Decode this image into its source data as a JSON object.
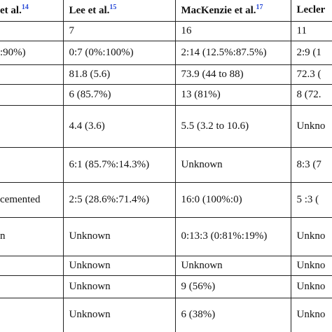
{
  "table": {
    "header": [
      {
        "text": "et al.",
        "sup": "14"
      },
      {
        "text": "Lee et al.",
        "sup": "15"
      },
      {
        "text": "MacKenzie et al.",
        "sup": "17"
      },
      {
        "text": "Lecler",
        "sup": null
      }
    ],
    "rows": [
      [
        null,
        "7",
        "16",
        "11"
      ],
      [
        ":90%)",
        "0:7 (0%:100%)",
        "2:14 (12.5%:87.5%)",
        "2:9 (1"
      ],
      [
        null,
        "81.8 (5.6)",
        "73.9 (44 to 88)",
        "72.3 ("
      ],
      [
        null,
        "6 (85.7%)",
        "13 (81%)",
        "8 (72."
      ],
      [
        null,
        "4.4 (3.6)",
        "5.5 (3.2 to 10.6)",
        "Unkno"
      ],
      [
        null,
        "6:1 (85.7%:14.3%)",
        "Unknown",
        "8:3 (7"
      ],
      [
        "cemented",
        "2:5 (28.6%:71.4%)",
        "16:0 (100%:0)",
        "5 :3 ("
      ],
      [
        "n",
        "Unknown",
        "0:13:3 (0:81%:19%)",
        "Unkno"
      ],
      [
        null,
        "Unknown",
        "Unknown",
        "Unkno"
      ],
      [
        null,
        "Unknown",
        "9 (56%)",
        "Unkno"
      ],
      [
        null,
        "Unknown",
        "6 (38%)",
        "Unkno"
      ]
    ]
  }
}
